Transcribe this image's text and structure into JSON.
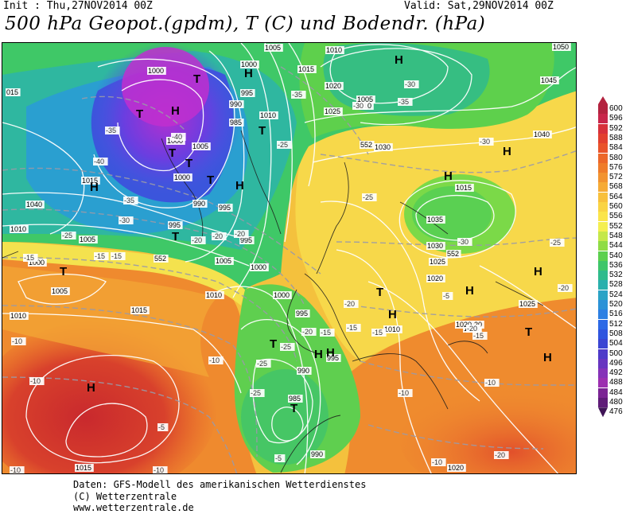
{
  "header": {
    "init": "Init : Thu,27NOV2014 00Z",
    "valid": "Valid: Sat,29NOV2014 00Z",
    "title": "500 hPa Geopot.(gpdm), T (C) und Bodendr. (hPa)"
  },
  "legend": {
    "values": [
      "600",
      "596",
      "592",
      "588",
      "584",
      "580",
      "576",
      "572",
      "568",
      "564",
      "560",
      "556",
      "552",
      "548",
      "544",
      "540",
      "536",
      "532",
      "528",
      "524",
      "520",
      "516",
      "512",
      "508",
      "504",
      "500",
      "496",
      "492",
      "488",
      "484",
      "480",
      "476"
    ],
    "colors": [
      "#b3233f",
      "#c8264a",
      "#d7313b",
      "#e2402f",
      "#e9532a",
      "#ec6729",
      "#ef7c2a",
      "#f29330",
      "#f6ab36",
      "#f8c03c",
      "#fad444",
      "#fbe54b",
      "#f4ef50",
      "#c5e84a",
      "#8fdc46",
      "#5cd04e",
      "#3fc66a",
      "#2fbb8c",
      "#2ab0ad",
      "#2aa3c6",
      "#2b92d7",
      "#2c7fe3",
      "#2c69e6",
      "#2f55df",
      "#3a45d3",
      "#4e3ac9",
      "#6735c0",
      "#8532b8",
      "#9c2fb0",
      "#7b2494",
      "#5f1c78",
      "#3f1456"
    ]
  },
  "pressure_labels": [
    {
      "t": "1005"
    },
    {
      "t": "1010"
    },
    {
      "t": "1050"
    },
    {
      "t": "1000"
    },
    {
      "t": "1015"
    },
    {
      "t": "1045"
    },
    {
      "t": "1000"
    },
    {
      "t": "1020"
    },
    {
      "t": "995"
    },
    {
      "t": "990"
    },
    {
      "t": "1005"
    },
    {
      "t": "1010"
    },
    {
      "t": "985"
    },
    {
      "t": "1025"
    },
    {
      "t": "1010"
    },
    {
      "t": "1040"
    },
    {
      "t": "1000"
    },
    {
      "t": "1005"
    },
    {
      "t": "1030"
    },
    {
      "t": "1000"
    },
    {
      "t": "1015"
    },
    {
      "t": "1040"
    },
    {
      "t": "1015"
    },
    {
      "t": "990"
    },
    {
      "t": "995"
    },
    {
      "t": "1035"
    },
    {
      "t": "1010"
    },
    {
      "t": "995"
    },
    {
      "t": "1005"
    },
    {
      "t": "995"
    },
    {
      "t": "1030"
    },
    {
      "t": "1000"
    },
    {
      "t": "1005"
    },
    {
      "t": "1000"
    },
    {
      "t": "1025"
    },
    {
      "t": "1020"
    },
    {
      "t": "1005"
    },
    {
      "t": "1010"
    },
    {
      "t": "1000"
    },
    {
      "t": "1015"
    },
    {
      "t": "1025"
    },
    {
      "t": "1010"
    },
    {
      "t": "995"
    },
    {
      "t": "1010"
    },
    {
      "t": "1020"
    },
    {
      "t": "1020"
    },
    {
      "t": "995"
    },
    {
      "t": "990"
    },
    {
      "t": "985"
    },
    {
      "t": "990"
    },
    {
      "t": "1020"
    },
    {
      "t": "1015"
    },
    {
      "t": "015"
    },
    {
      "t": "1020"
    }
  ],
  "temp_labels": [
    {
      "t": "-30"
    },
    {
      "t": "-30"
    },
    {
      "t": "-35"
    },
    {
      "t": "-35"
    },
    {
      "t": "-30"
    },
    {
      "t": "-40"
    },
    {
      "t": "-25"
    },
    {
      "t": "-35"
    },
    {
      "t": "-40"
    },
    {
      "t": "-35"
    },
    {
      "t": "-25"
    },
    {
      "t": "-30"
    },
    {
      "t": "-25"
    },
    {
      "t": "-15"
    },
    {
      "t": "-20"
    },
    {
      "t": "-30"
    },
    {
      "t": "-25"
    },
    {
      "t": "-20"
    },
    {
      "t": "-20"
    },
    {
      "t": "-15"
    },
    {
      "t": "-15"
    },
    {
      "t": "-20"
    },
    {
      "t": "-20"
    },
    {
      "t": "-15"
    },
    {
      "t": "-20"
    },
    {
      "t": "-10"
    },
    {
      "t": "-10"
    },
    {
      "t": "-15"
    },
    {
      "t": "-25"
    },
    {
      "t": "-10"
    },
    {
      "t": "-10"
    },
    {
      "t": "-5"
    },
    {
      "t": "-10"
    },
    {
      "t": "-15"
    },
    {
      "t": "-10"
    },
    {
      "t": "-20"
    },
    {
      "t": "-10"
    },
    {
      "t": "-10"
    },
    {
      "t": "-5"
    },
    {
      "t": "-5"
    },
    {
      "t": "-20"
    },
    {
      "t": "-25"
    },
    {
      "t": "-25"
    },
    {
      "t": "-15"
    }
  ],
  "centers": [
    {
      "t": "T"
    },
    {
      "t": "H"
    },
    {
      "t": "T"
    },
    {
      "t": "T"
    },
    {
      "t": "H"
    },
    {
      "t": "H"
    },
    {
      "t": "T"
    },
    {
      "t": "H"
    },
    {
      "t": "T"
    },
    {
      "t": "T"
    },
    {
      "t": "H"
    },
    {
      "t": "H"
    },
    {
      "t": "T"
    },
    {
      "t": "T"
    },
    {
      "t": "H"
    },
    {
      "t": "H"
    },
    {
      "t": "H"
    },
    {
      "t": "T"
    },
    {
      "t": "H"
    },
    {
      "t": "T"
    },
    {
      "t": "H"
    },
    {
      "t": "H"
    },
    {
      "t": "T"
    },
    {
      "t": "H"
    },
    {
      "t": "H"
    },
    {
      "t": "T"
    }
  ],
  "geopot_labels": [
    {
      "t": "552"
    },
    {
      "t": "552"
    },
    {
      "t": "552"
    }
  ],
  "credits": {
    "line1": "Daten: GFS-Modell des amerikanischen Wetterdienstes",
    "line2": "(C) Wetterzentrale",
    "line3": "www.wetterzentrale.de"
  }
}
